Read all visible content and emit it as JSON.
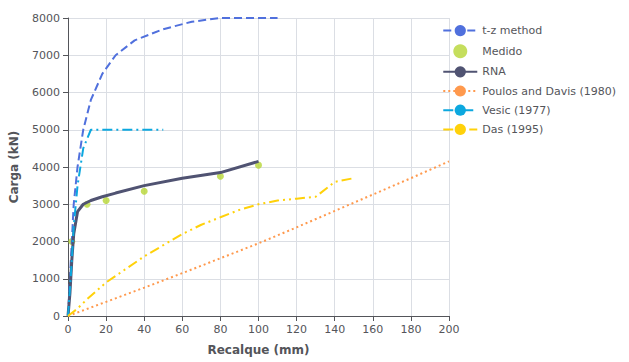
{
  "chart_data": {
    "type": "line",
    "xlabel": "Recalque (mm)",
    "ylabel": "Carga (kN)",
    "xlim": [
      0,
      200
    ],
    "ylim": [
      0,
      8000
    ],
    "xticks": [
      0,
      20,
      40,
      60,
      80,
      100,
      120,
      140,
      160,
      180,
      200
    ],
    "yticks": [
      0,
      1000,
      2000,
      3000,
      4000,
      5000,
      6000,
      7000,
      8000
    ],
    "grid": true,
    "legend": "upper right",
    "series": [
      {
        "name": "t-z method",
        "type": "line",
        "line_style": "dashed",
        "x": [
          0,
          1,
          2,
          3,
          5,
          8,
          12,
          18,
          25,
          35,
          50,
          65,
          80,
          95,
          110
        ],
        "values": [
          0,
          1000,
          2000,
          3000,
          4000,
          5000,
          5800,
          6500,
          7000,
          7400,
          7700,
          7900,
          8000,
          8000,
          8000
        ]
      },
      {
        "name": "Medido",
        "type": "scatter",
        "marker": "circle",
        "x": [
          2,
          10,
          20,
          40,
          80,
          100
        ],
        "values": [
          2000,
          3000,
          3100,
          3350,
          3750,
          4050
        ]
      },
      {
        "name": "RNA",
        "type": "line",
        "line_style": "solid",
        "x": [
          0,
          1,
          2,
          3,
          5,
          8,
          12,
          18,
          25,
          40,
          60,
          80,
          100
        ],
        "values": [
          0,
          600,
          1500,
          2200,
          2800,
          3000,
          3100,
          3200,
          3300,
          3500,
          3700,
          3850,
          4150
        ]
      },
      {
        "name": "Poulos and Davis (1980)",
        "type": "line",
        "line_style": "dotted",
        "x": [
          0,
          20,
          40,
          60,
          80,
          100,
          120,
          140,
          160,
          180,
          200
        ],
        "values": [
          0,
          380,
          760,
          1150,
          1550,
          1950,
          2380,
          2820,
          3260,
          3700,
          4150
        ]
      },
      {
        "name": "Vesic (1977)",
        "type": "line",
        "line_style": "dashdot",
        "x": [
          0,
          1,
          2,
          3,
          5,
          8,
          12,
          18,
          25,
          35,
          50
        ],
        "values": [
          0,
          700,
          1500,
          2400,
          3500,
          4500,
          5000,
          5000,
          5000,
          5000,
          5000
        ]
      },
      {
        "name": "Das (1995)",
        "type": "line",
        "line_style": "dashdotdot",
        "x": [
          0,
          5,
          10,
          20,
          30,
          40,
          50,
          60,
          70,
          80,
          90,
          100,
          110,
          120,
          130,
          140,
          150
        ],
        "values": [
          0,
          200,
          450,
          900,
          1250,
          1600,
          1900,
          2200,
          2450,
          2650,
          2850,
          3000,
          3100,
          3150,
          3200,
          3600,
          3700
        ]
      }
    ]
  }
}
